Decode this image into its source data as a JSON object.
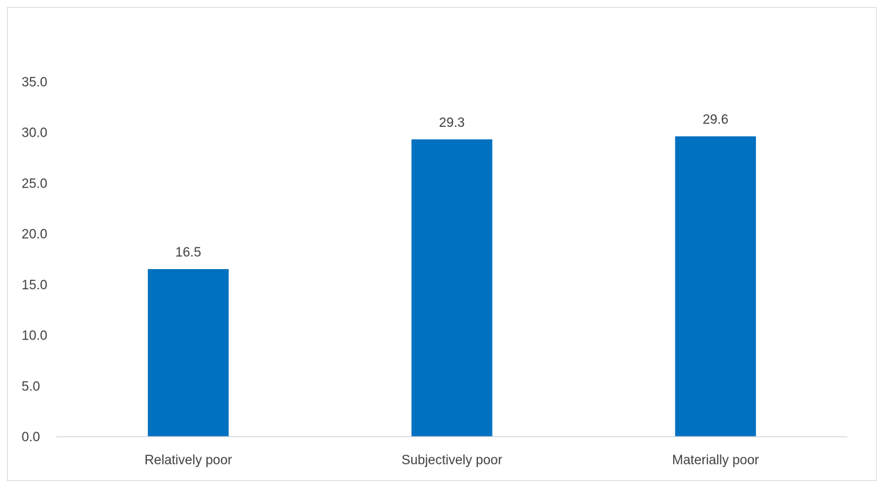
{
  "chart_data": {
    "type": "bar",
    "title": "",
    "xlabel": "",
    "ylabel": "",
    "categories": [
      "Relatively poor",
      "Subjectively poor",
      "Materially poor"
    ],
    "values": [
      16.5,
      29.3,
      29.6
    ],
    "value_labels": [
      "16.5",
      "29.3",
      "29.6"
    ],
    "ylim": [
      0,
      35
    ],
    "yticks": [
      0,
      5,
      10,
      15,
      20,
      25,
      30,
      35
    ],
    "ytick_labels": [
      "0.0",
      "5.0",
      "10.0",
      "15.0",
      "20.0",
      "25.0",
      "30.0",
      "35.0"
    ],
    "grid": false,
    "legend": "none",
    "colors": {
      "bar": "#0070c0",
      "axis": "#d9d9d9",
      "text": "#404040",
      "border": "#d9d9d9"
    }
  }
}
